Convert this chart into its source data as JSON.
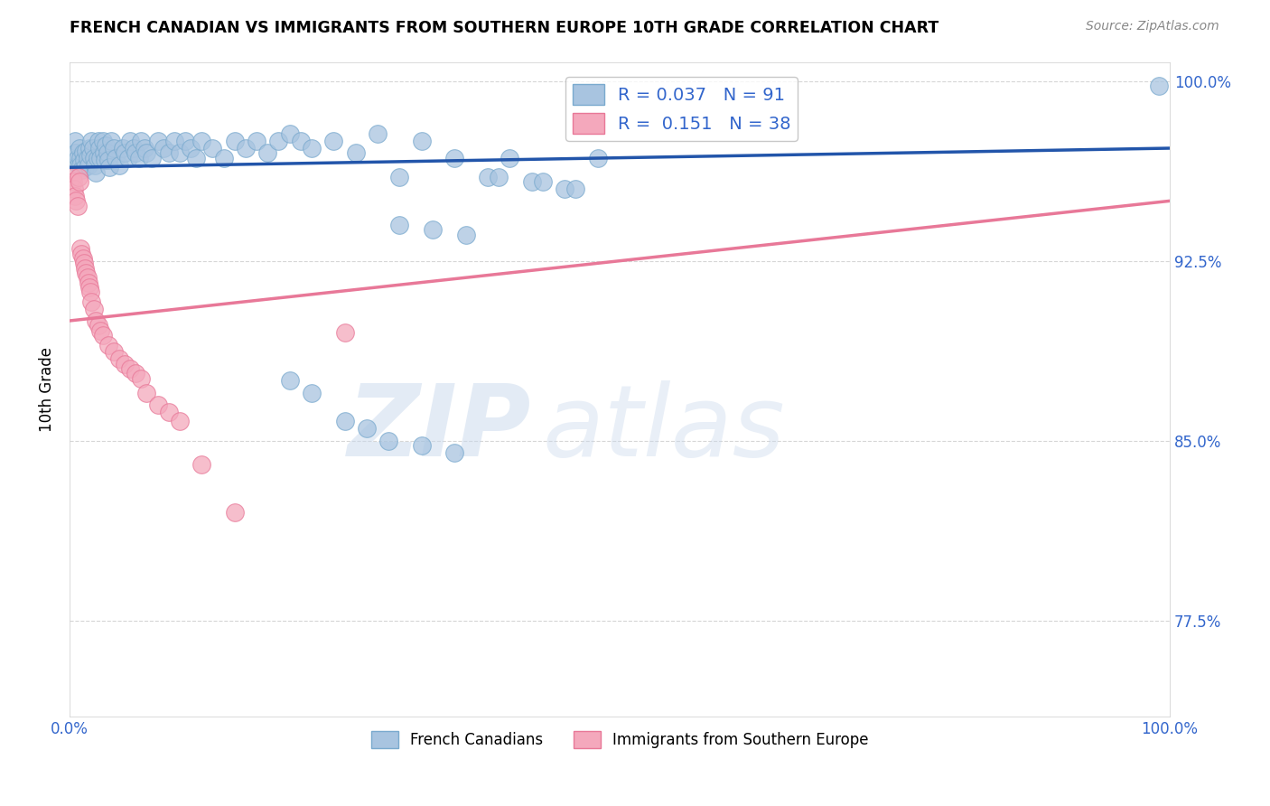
{
  "title": "FRENCH CANADIAN VS IMMIGRANTS FROM SOUTHERN EUROPE 10TH GRADE CORRELATION CHART",
  "source": "Source: ZipAtlas.com",
  "xlabel": "",
  "ylabel": "10th Grade",
  "xlim": [
    0.0,
    1.0
  ],
  "ylim": [
    0.735,
    1.008
  ],
  "yticks": [
    0.775,
    0.85,
    0.925,
    1.0
  ],
  "ytick_labels": [
    "77.5%",
    "85.0%",
    "92.5%",
    "100.0%"
  ],
  "xticks": [
    0.0,
    1.0
  ],
  "xtick_labels": [
    "0.0%",
    "100.0%"
  ],
  "blue_R": 0.037,
  "blue_N": 91,
  "pink_R": 0.151,
  "pink_N": 38,
  "blue_color": "#A8C4E0",
  "pink_color": "#F4A8BC",
  "blue_edge_color": "#7AAACE",
  "pink_edge_color": "#E87898",
  "blue_line_color": "#2255AA",
  "pink_line_color": "#E87898",
  "axis_color": "#3366CC",
  "grid_color": "#CCCCCC",
  "watermark": "ZIPAtlas",
  "watermark_color": "#C8D8EC",
  "blue_scatter_x": [
    0.005,
    0.006,
    0.007,
    0.008,
    0.009,
    0.01,
    0.01,
    0.011,
    0.012,
    0.013,
    0.014,
    0.015,
    0.016,
    0.017,
    0.018,
    0.019,
    0.02,
    0.021,
    0.022,
    0.023,
    0.024,
    0.025,
    0.026,
    0.027,
    0.028,
    0.03,
    0.031,
    0.032,
    0.033,
    0.034,
    0.035,
    0.036,
    0.038,
    0.04,
    0.042,
    0.045,
    0.048,
    0.05,
    0.053,
    0.055,
    0.058,
    0.06,
    0.063,
    0.065,
    0.068,
    0.07,
    0.075,
    0.08,
    0.085,
    0.09,
    0.095,
    0.1,
    0.105,
    0.11,
    0.115,
    0.12,
    0.13,
    0.14,
    0.15,
    0.16,
    0.17,
    0.18,
    0.19,
    0.2,
    0.21,
    0.22,
    0.24,
    0.26,
    0.28,
    0.3,
    0.32,
    0.35,
    0.38,
    0.4,
    0.42,
    0.45,
    0.48,
    0.3,
    0.33,
    0.36,
    0.39,
    0.43,
    0.46,
    0.2,
    0.22,
    0.25,
    0.27,
    0.29,
    0.32,
    0.35,
    0.99
  ],
  "blue_scatter_y": [
    0.975,
    0.97,
    0.968,
    0.965,
    0.972,
    0.968,
    0.965,
    0.963,
    0.97,
    0.967,
    0.964,
    0.971,
    0.968,
    0.965,
    0.972,
    0.969,
    0.975,
    0.972,
    0.968,
    0.965,
    0.962,
    0.968,
    0.975,
    0.972,
    0.968,
    0.975,
    0.97,
    0.967,
    0.973,
    0.97,
    0.967,
    0.964,
    0.975,
    0.972,
    0.968,
    0.965,
    0.972,
    0.97,
    0.968,
    0.975,
    0.972,
    0.97,
    0.968,
    0.975,
    0.972,
    0.97,
    0.968,
    0.975,
    0.972,
    0.97,
    0.975,
    0.97,
    0.975,
    0.972,
    0.968,
    0.975,
    0.972,
    0.968,
    0.975,
    0.972,
    0.975,
    0.97,
    0.975,
    0.978,
    0.975,
    0.972,
    0.975,
    0.97,
    0.978,
    0.96,
    0.975,
    0.968,
    0.96,
    0.968,
    0.958,
    0.955,
    0.968,
    0.94,
    0.938,
    0.936,
    0.96,
    0.958,
    0.955,
    0.875,
    0.87,
    0.858,
    0.855,
    0.85,
    0.848,
    0.845,
    0.998
  ],
  "pink_scatter_x": [
    0.002,
    0.003,
    0.004,
    0.005,
    0.006,
    0.007,
    0.008,
    0.009,
    0.01,
    0.011,
    0.012,
    0.013,
    0.014,
    0.015,
    0.016,
    0.017,
    0.018,
    0.019,
    0.02,
    0.022,
    0.024,
    0.026,
    0.028,
    0.03,
    0.035,
    0.04,
    0.045,
    0.05,
    0.055,
    0.06,
    0.065,
    0.07,
    0.08,
    0.09,
    0.1,
    0.12,
    0.15,
    0.25
  ],
  "pink_scatter_y": [
    0.96,
    0.958,
    0.955,
    0.952,
    0.95,
    0.948,
    0.96,
    0.958,
    0.93,
    0.928,
    0.926,
    0.924,
    0.922,
    0.92,
    0.918,
    0.916,
    0.914,
    0.912,
    0.908,
    0.905,
    0.9,
    0.898,
    0.896,
    0.894,
    0.89,
    0.887,
    0.884,
    0.882,
    0.88,
    0.878,
    0.876,
    0.87,
    0.865,
    0.862,
    0.858,
    0.84,
    0.82,
    0.895
  ],
  "blue_trend_x": [
    0.0,
    1.0
  ],
  "blue_trend_y": [
    0.964,
    0.972
  ],
  "pink_trend_x": [
    0.0,
    1.0
  ],
  "pink_trend_y": [
    0.9,
    0.95
  ],
  "legend_blue_label": "French Canadians",
  "legend_pink_label": "Immigrants from Southern Europe"
}
